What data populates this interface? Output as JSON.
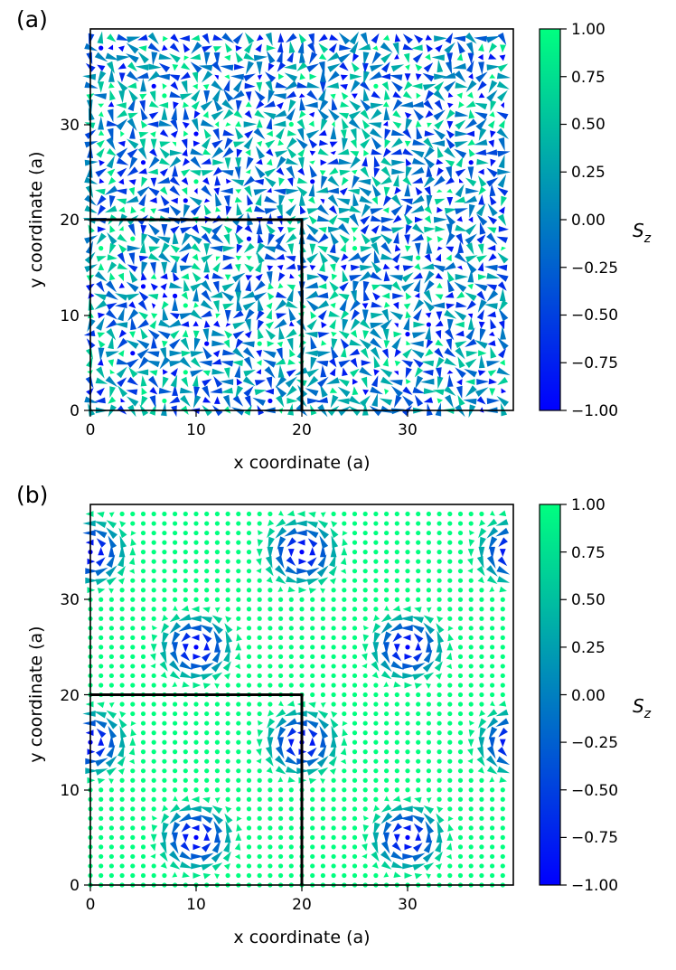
{
  "figure": {
    "colormap": "winter"
  },
  "colors": {
    "cmap_min": "#0000ff",
    "cmap_max": "#00ff80",
    "frame": "#000000"
  },
  "chart_data": [
    {
      "type": "quiver",
      "panel_label": "(a)",
      "state": "disordered random spins",
      "xlabel": "x coordinate (a)",
      "ylabel": "y coordinate (a)",
      "xlim": [
        0,
        40
      ],
      "ylim": [
        0,
        40
      ],
      "x_ticks": [
        "0",
        "10",
        "20",
        "30"
      ],
      "y_ticks": [
        "0",
        "10",
        "20",
        "30"
      ],
      "grid": false,
      "lattice": {
        "nx": 40,
        "ny": 40,
        "spacing": 1
      },
      "highlight_box": {
        "x": [
          0,
          20
        ],
        "y": [
          0,
          20
        ]
      },
      "colorbar": {
        "label": "S",
        "label_sub": "z",
        "range": [
          -1,
          1
        ],
        "ticks": [
          "1.00",
          "0.75",
          "0.50",
          "0.25",
          "0.00",
          "−0.25",
          "−0.50",
          "−0.75",
          "−1.00"
        ]
      }
    },
    {
      "type": "quiver",
      "panel_label": "(b)",
      "state": "skyrmion lattice",
      "xlabel": "x coordinate (a)",
      "ylabel": "y coordinate (a)",
      "xlim": [
        0,
        40
      ],
      "ylim": [
        0,
        40
      ],
      "x_ticks": [
        "0",
        "10",
        "20",
        "30"
      ],
      "y_ticks": [
        "0",
        "10",
        "20",
        "30"
      ],
      "grid": false,
      "lattice": {
        "nx": 40,
        "ny": 40,
        "spacing": 1
      },
      "skyrmion_centers": [
        [
          0,
          35
        ],
        [
          20,
          35
        ],
        [
          40,
          35
        ],
        [
          10,
          25
        ],
        [
          30,
          25
        ],
        [
          0,
          15
        ],
        [
          20,
          15
        ],
        [
          40,
          15
        ],
        [
          10,
          5
        ],
        [
          30,
          5
        ]
      ],
      "skyrmion_radius": 5,
      "highlight_box": {
        "x": [
          0,
          20
        ],
        "y": [
          0,
          20
        ]
      },
      "colorbar": {
        "label": "S",
        "label_sub": "z",
        "range": [
          -1,
          1
        ],
        "ticks": [
          "1.00",
          "0.75",
          "0.50",
          "0.25",
          "0.00",
          "−0.25",
          "−0.50",
          "−0.75",
          "−1.00"
        ]
      }
    }
  ]
}
